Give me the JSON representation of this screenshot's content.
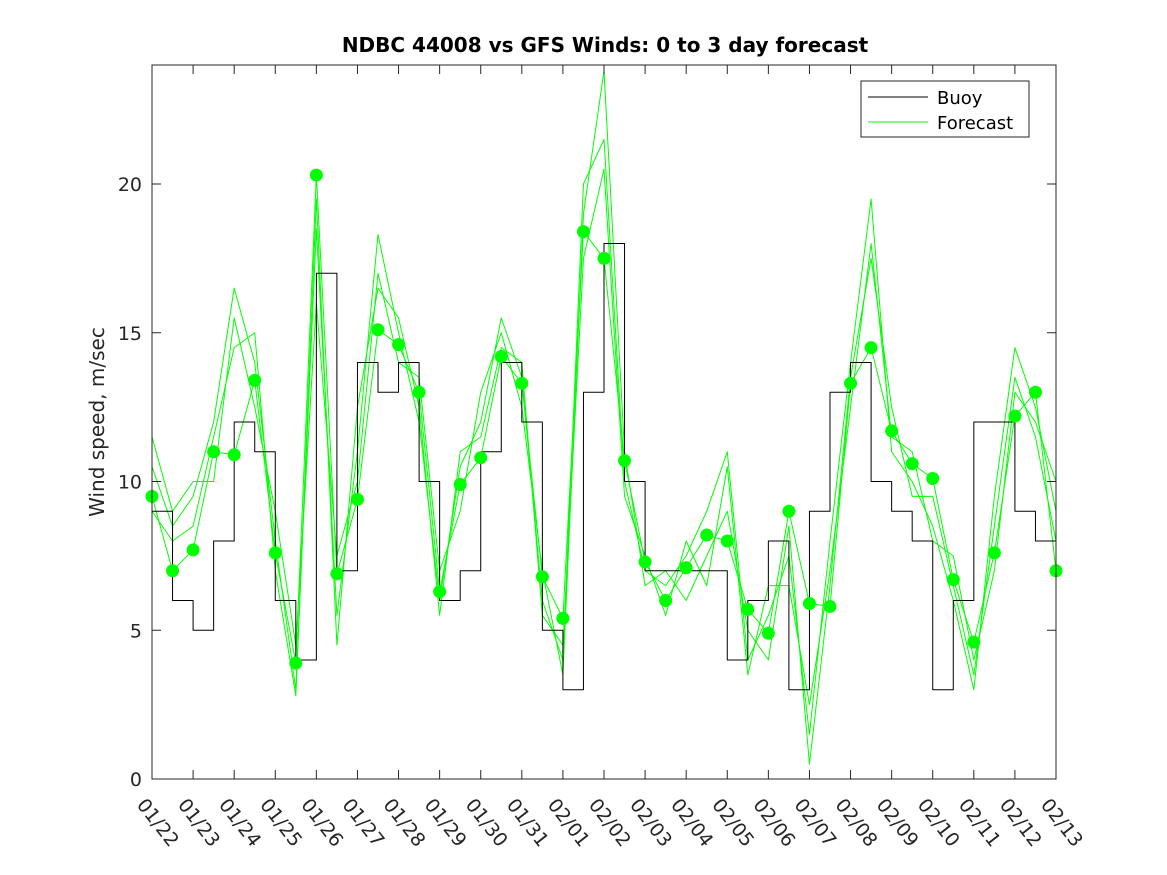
{
  "chart_data": {
    "type": "line",
    "title": "NDBC 44008 vs GFS Winds: 0 to 3 day forecast",
    "xlabel": "",
    "ylabel": "Wind speed, m/sec",
    "xlim": [
      0,
      22
    ],
    "ylim": [
      0,
      24
    ],
    "x_ticks": [
      0,
      1,
      2,
      3,
      4,
      5,
      6,
      7,
      8,
      9,
      10,
      11,
      12,
      13,
      14,
      15,
      16,
      17,
      18,
      19,
      20,
      21,
      22
    ],
    "x_tick_labels": [
      "01/22",
      "01/23",
      "01/24",
      "01/25",
      "01/26",
      "01/27",
      "01/28",
      "01/29",
      "01/30",
      "01/31",
      "02/01",
      "02/02",
      "02/03",
      "02/04",
      "02/05",
      "02/06",
      "02/07",
      "02/08",
      "02/09",
      "02/10",
      "02/11",
      "02/12",
      "02/13"
    ],
    "y_ticks": [
      0,
      5,
      10,
      15,
      20
    ],
    "y_tick_labels": [
      "0",
      "5",
      "10",
      "15",
      "20"
    ],
    "legend": {
      "position": "top-right",
      "entries": [
        "Buoy",
        "Forecast"
      ]
    },
    "colors": {
      "buoy": "#000000",
      "forecast": "#00ff00",
      "axis": "#262626"
    },
    "series": [
      {
        "name": "Buoy",
        "x": [
          0,
          0.5,
          1,
          1.5,
          2,
          2.5,
          3,
          3.5,
          4,
          4.5,
          5,
          5.5,
          6,
          6.5,
          7,
          7.5,
          8,
          8.5,
          9,
          9.5,
          10,
          10.5,
          11,
          11.5,
          12,
          12.5,
          13,
          13.5,
          14,
          14.5,
          15,
          15.5,
          16,
          16.5,
          17,
          17.5,
          18,
          18.5,
          19,
          19.5,
          20,
          20.5,
          21,
          21.5,
          22
        ],
        "values": [
          9,
          6,
          5,
          8,
          12,
          11,
          6,
          4,
          17,
          7,
          14,
          13,
          14,
          10,
          6,
          7,
          11,
          14,
          12,
          5,
          3,
          13,
          18,
          10,
          7,
          7,
          7,
          7,
          4,
          6,
          8,
          3,
          9,
          13,
          14,
          10,
          9,
          8,
          3,
          6,
          12,
          12,
          9,
          8,
          7
        ]
      },
      {
        "name": "Forecast",
        "x": [
          0,
          0.5,
          1,
          1.5,
          2,
          2.5,
          3,
          3.5,
          4,
          4.5,
          5,
          5.5,
          6,
          6.5,
          7,
          7.5,
          8,
          8.5,
          9,
          9.5,
          10,
          10.5,
          11,
          11.5,
          12,
          12.5,
          13,
          13.5,
          14,
          14.5,
          15,
          15.5,
          16,
          16.5,
          17,
          17.5,
          18,
          18.5,
          19,
          19.5,
          20,
          20.5,
          21,
          21.5,
          22
        ],
        "values": [
          9.5,
          7.0,
          7.7,
          11.0,
          10.9,
          13.4,
          7.6,
          3.9,
          20.3,
          6.9,
          9.4,
          15.1,
          14.6,
          13.0,
          6.3,
          9.9,
          10.8,
          14.2,
          13.3,
          6.8,
          5.4,
          18.4,
          17.5,
          10.7,
          7.3,
          6.0,
          7.1,
          8.2,
          8.0,
          5.7,
          4.9,
          9.0,
          5.9,
          5.8,
          13.3,
          14.5,
          11.7,
          10.6,
          10.1,
          6.7,
          4.6,
          7.6,
          12.2,
          13.0,
          7.0
        ]
      },
      {
        "name": "Forecast",
        "x": [
          0,
          0.5,
          1,
          1.5,
          2,
          2.5,
          3,
          3.5,
          4,
          4.5,
          5,
          5.5,
          6,
          6.5,
          7,
          7.5,
          8,
          8.5,
          9,
          9.5,
          10,
          10.5,
          11,
          11.5,
          12,
          12.5,
          13,
          13.5,
          14,
          14.5,
          15,
          15.5,
          16,
          16.5,
          17,
          17.5,
          18,
          18.5,
          19,
          19.5,
          20,
          20.5,
          21,
          21.5,
          22
        ],
        "values": [
          10.5,
          8.5,
          9.5,
          12.0,
          16.5,
          14.0,
          8.0,
          3.0,
          18.5,
          5.5,
          11.0,
          18.3,
          15.0,
          12.0,
          6.0,
          10.5,
          12.0,
          15.5,
          13.5,
          6.0,
          4.0,
          20.0,
          21.5,
          10.0,
          7.0,
          6.5,
          7.5,
          9.0,
          11.0,
          4.0,
          5.5,
          7.5,
          1.5,
          8.0,
          14.0,
          19.5,
          11.0,
          10.0,
          8.5,
          6.0,
          3.0,
          9.5,
          14.5,
          12.5,
          9.0
        ]
      },
      {
        "name": "Forecast",
        "x": [
          0,
          0.5,
          1,
          1.5,
          2,
          2.5,
          3,
          3.5,
          4,
          4.5,
          5,
          5.5,
          6,
          6.5,
          7,
          7.5,
          8,
          8.5,
          9,
          9.5,
          10,
          10.5,
          11,
          11.5,
          12,
          12.5,
          13,
          13.5,
          14,
          14.5,
          15,
          15.5,
          16,
          16.5,
          17,
          17.5,
          18,
          18.5,
          19,
          19.5,
          20,
          20.5,
          21,
          21.5,
          22
        ],
        "values": [
          11.5,
          9.0,
          10.0,
          10.0,
          15.5,
          12.5,
          9.0,
          4.5,
          16.0,
          7.5,
          10.0,
          17.0,
          14.0,
          13.5,
          7.0,
          9.0,
          13.0,
          15.0,
          12.5,
          7.0,
          3.5,
          19.0,
          23.8,
          11.0,
          6.5,
          7.0,
          6.0,
          7.5,
          9.0,
          5.0,
          4.0,
          8.5,
          0.5,
          6.5,
          13.5,
          17.5,
          12.5,
          9.5,
          9.5,
          6.5,
          3.5,
          8.5,
          13.5,
          11.5,
          8.0
        ]
      },
      {
        "name": "Forecast",
        "x": [
          0,
          0.5,
          1,
          1.5,
          2,
          2.5,
          3,
          3.5,
          4,
          4.5,
          5,
          5.5,
          6,
          6.5,
          7,
          7.5,
          8,
          8.5,
          9,
          9.5,
          10,
          10.5,
          11,
          11.5,
          12,
          12.5,
          13,
          13.5,
          14,
          14.5,
          15,
          15.5,
          16,
          16.5,
          17,
          17.5,
          18,
          18.5,
          19,
          19.5,
          20,
          20.5,
          21,
          21.5,
          22
        ],
        "values": [
          9.0,
          8.0,
          8.5,
          11.5,
          14.5,
          15.0,
          7.0,
          2.8,
          19.5,
          4.5,
          12.5,
          16.5,
          15.5,
          12.5,
          5.5,
          11.0,
          11.5,
          14.5,
          14.0,
          5.5,
          4.5,
          17.5,
          20.5,
          9.5,
          7.5,
          5.5,
          8.0,
          6.5,
          10.5,
          3.5,
          6.5,
          6.5,
          2.5,
          7.0,
          12.5,
          18.0,
          11.5,
          11.0,
          8.0,
          7.5,
          4.0,
          7.0,
          13.0,
          12.0,
          10.0
        ]
      }
    ]
  }
}
